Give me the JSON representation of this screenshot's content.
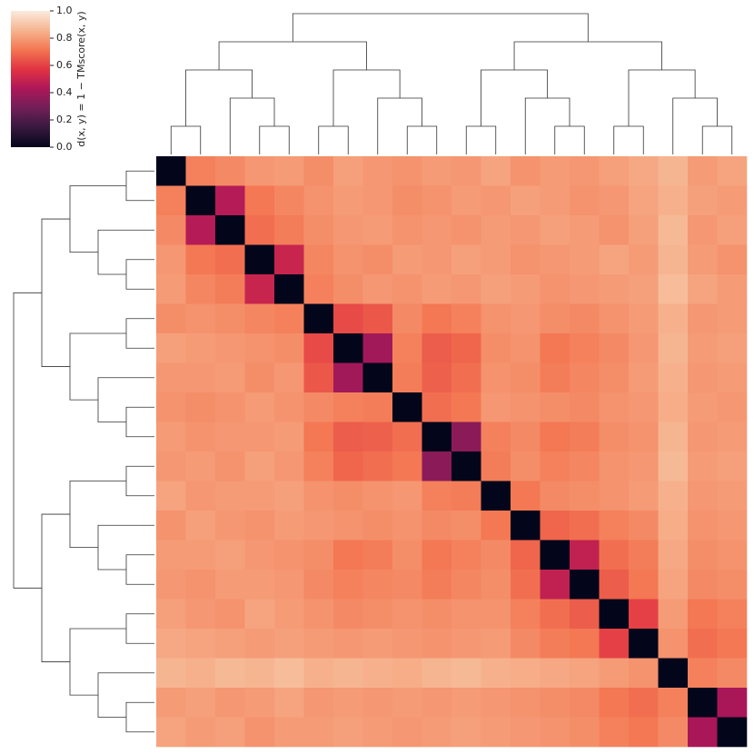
{
  "chart_data": {
    "type": "heatmap",
    "colorbar_label": "d(x, y) = 1 − TMscore(x, y)",
    "zlim": [
      0,
      1
    ],
    "zticks": [
      {
        "value": 0,
        "label": "0.0"
      },
      {
        "value": 0.2,
        "label": "0.2"
      },
      {
        "value": 0.4,
        "label": "0.4"
      },
      {
        "value": 0.6,
        "label": "0.6"
      },
      {
        "value": 0.8,
        "label": "0.8"
      },
      {
        "value": 1,
        "label": "1.0"
      }
    ],
    "colormap": [
      "#03051a",
      "#36193e",
      "#701f57",
      "#ad1759",
      "#e13342",
      "#f37651",
      "#f6b48f",
      "#faebdd"
    ],
    "values": [
      [
        0,
        0.74,
        0.76,
        0.79,
        0.8,
        0.77,
        0.81,
        0.79,
        0.78,
        0.8,
        0.79,
        0.82,
        0.78,
        0.8,
        0.79,
        0.81,
        0.83,
        0.86,
        0.8,
        0.82
      ],
      [
        0.74,
        0,
        0.45,
        0.72,
        0.75,
        0.78,
        0.8,
        0.79,
        0.77,
        0.78,
        0.8,
        0.79,
        0.81,
        0.8,
        0.78,
        0.79,
        0.82,
        0.85,
        0.81,
        0.8
      ],
      [
        0.76,
        0.45,
        0,
        0.7,
        0.73,
        0.77,
        0.79,
        0.8,
        0.78,
        0.79,
        0.78,
        0.8,
        0.79,
        0.81,
        0.8,
        0.78,
        0.81,
        0.87,
        0.79,
        0.81
      ],
      [
        0.79,
        0.72,
        0.7,
        0,
        0.5,
        0.75,
        0.78,
        0.77,
        0.8,
        0.79,
        0.81,
        0.8,
        0.78,
        0.79,
        0.8,
        0.82,
        0.8,
        0.86,
        0.8,
        0.78
      ],
      [
        0.8,
        0.75,
        0.73,
        0.5,
        0,
        0.74,
        0.77,
        0.79,
        0.78,
        0.8,
        0.79,
        0.81,
        0.8,
        0.78,
        0.79,
        0.8,
        0.81,
        0.88,
        0.82,
        0.8
      ],
      [
        0.77,
        0.78,
        0.77,
        0.75,
        0.74,
        0,
        0.62,
        0.65,
        0.76,
        0.72,
        0.74,
        0.78,
        0.79,
        0.77,
        0.76,
        0.78,
        0.8,
        0.85,
        0.79,
        0.8
      ],
      [
        0.81,
        0.8,
        0.79,
        0.78,
        0.77,
        0.62,
        0,
        0.4,
        0.74,
        0.66,
        0.68,
        0.77,
        0.78,
        0.72,
        0.74,
        0.76,
        0.79,
        0.86,
        0.8,
        0.81
      ],
      [
        0.79,
        0.79,
        0.8,
        0.77,
        0.79,
        0.65,
        0.4,
        0,
        0.73,
        0.67,
        0.7,
        0.78,
        0.77,
        0.73,
        0.75,
        0.77,
        0.8,
        0.85,
        0.79,
        0.8
      ],
      [
        0.78,
        0.77,
        0.78,
        0.8,
        0.78,
        0.76,
        0.74,
        0.73,
        0,
        0.7,
        0.72,
        0.79,
        0.78,
        0.77,
        0.76,
        0.78,
        0.79,
        0.84,
        0.8,
        0.79
      ],
      [
        0.8,
        0.78,
        0.79,
        0.79,
        0.8,
        0.72,
        0.66,
        0.67,
        0.7,
        0,
        0.35,
        0.74,
        0.76,
        0.72,
        0.73,
        0.77,
        0.78,
        0.86,
        0.79,
        0.8
      ],
      [
        0.79,
        0.8,
        0.78,
        0.81,
        0.79,
        0.74,
        0.68,
        0.7,
        0.72,
        0.35,
        0,
        0.73,
        0.77,
        0.74,
        0.75,
        0.78,
        0.79,
        0.87,
        0.8,
        0.81
      ],
      [
        0.82,
        0.79,
        0.8,
        0.8,
        0.81,
        0.78,
        0.77,
        0.78,
        0.79,
        0.74,
        0.73,
        0,
        0.72,
        0.76,
        0.77,
        0.78,
        0.8,
        0.85,
        0.79,
        0.8
      ],
      [
        0.78,
        0.81,
        0.79,
        0.78,
        0.8,
        0.79,
        0.78,
        0.77,
        0.78,
        0.76,
        0.77,
        0.72,
        0,
        0.68,
        0.7,
        0.74,
        0.76,
        0.84,
        0.78,
        0.79
      ],
      [
        0.8,
        0.8,
        0.81,
        0.79,
        0.78,
        0.77,
        0.72,
        0.73,
        0.77,
        0.72,
        0.74,
        0.76,
        0.68,
        0,
        0.48,
        0.7,
        0.73,
        0.83,
        0.77,
        0.78
      ],
      [
        0.79,
        0.78,
        0.8,
        0.8,
        0.79,
        0.76,
        0.74,
        0.75,
        0.76,
        0.73,
        0.75,
        0.77,
        0.7,
        0.48,
        0,
        0.66,
        0.72,
        0.82,
        0.76,
        0.77
      ],
      [
        0.81,
        0.79,
        0.78,
        0.82,
        0.8,
        0.78,
        0.76,
        0.77,
        0.78,
        0.77,
        0.78,
        0.78,
        0.74,
        0.7,
        0.66,
        0,
        0.6,
        0.8,
        0.72,
        0.74
      ],
      [
        0.83,
        0.82,
        0.81,
        0.8,
        0.81,
        0.8,
        0.79,
        0.8,
        0.79,
        0.78,
        0.79,
        0.8,
        0.76,
        0.73,
        0.72,
        0.6,
        0,
        0.78,
        0.7,
        0.72
      ],
      [
        0.86,
        0.85,
        0.87,
        0.86,
        0.88,
        0.85,
        0.86,
        0.85,
        0.84,
        0.86,
        0.87,
        0.85,
        0.84,
        0.83,
        0.82,
        0.8,
        0.78,
        0,
        0.74,
        0.76
      ],
      [
        0.8,
        0.81,
        0.79,
        0.8,
        0.82,
        0.79,
        0.8,
        0.79,
        0.8,
        0.79,
        0.8,
        0.79,
        0.78,
        0.77,
        0.76,
        0.72,
        0.7,
        0.74,
        0,
        0.42
      ],
      [
        0.82,
        0.8,
        0.81,
        0.78,
        0.8,
        0.8,
        0.81,
        0.8,
        0.79,
        0.8,
        0.81,
        0.8,
        0.79,
        0.78,
        0.77,
        0.74,
        0.72,
        0.76,
        0.42,
        0
      ]
    ]
  }
}
